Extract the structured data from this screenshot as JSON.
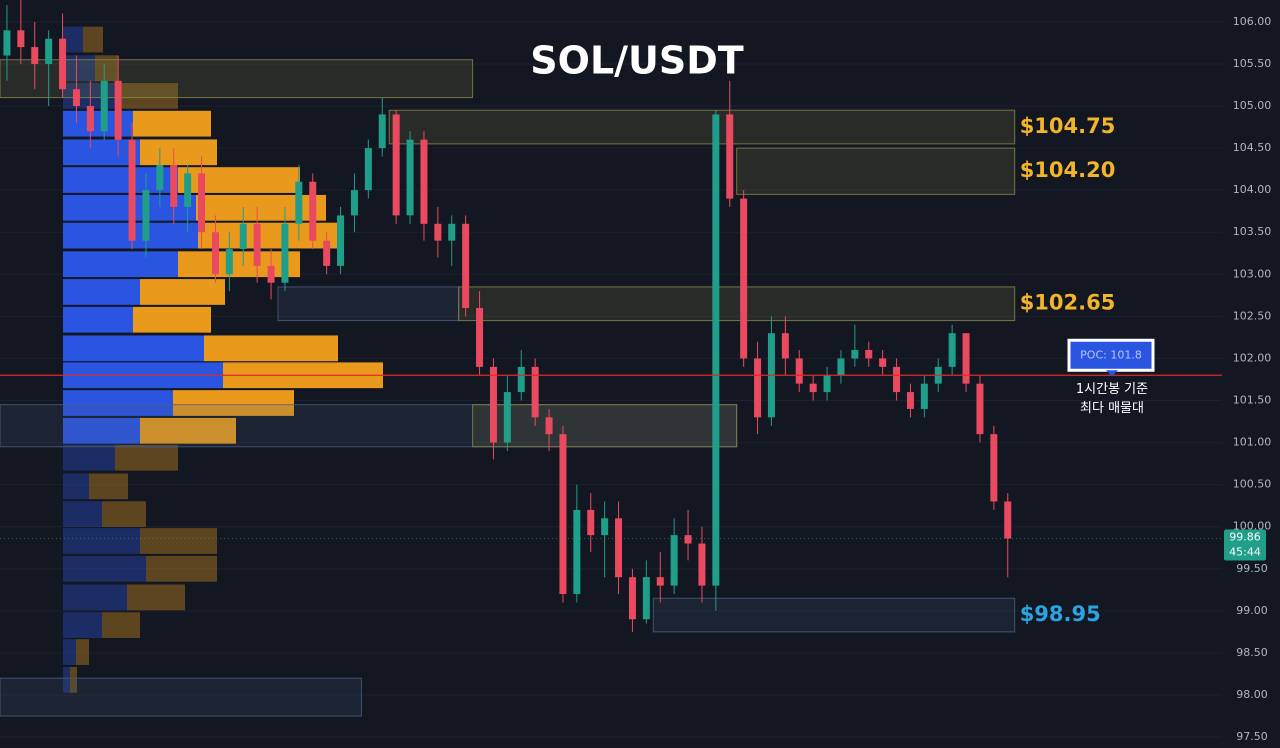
{
  "chart_data": {
    "type": "candlestick",
    "title": "SOL/USDT",
    "ylim": [
      97.37,
      106.26
    ],
    "yticks": [
      {
        "value": 97.5,
        "label": "97.50"
      },
      {
        "value": 98,
        "label": "98.00"
      },
      {
        "value": 98.5,
        "label": "98.50"
      },
      {
        "value": 99,
        "label": "99.00"
      },
      {
        "value": 99.5,
        "label": "99.50"
      },
      {
        "value": 100,
        "label": "100.00"
      },
      {
        "value": 100.5,
        "label": "100.50"
      },
      {
        "value": 101,
        "label": "101.00"
      },
      {
        "value": 101.5,
        "label": "101.50"
      },
      {
        "value": 102,
        "label": "102.00"
      },
      {
        "value": 102.5,
        "label": "102.50"
      },
      {
        "value": 103,
        "label": "103.00"
      },
      {
        "value": 103.5,
        "label": "103.50"
      },
      {
        "value": 104,
        "label": "104.00"
      },
      {
        "value": 104.5,
        "label": "104.50"
      },
      {
        "value": 105,
        "label": "105.00"
      },
      {
        "value": 105.5,
        "label": "105.50"
      },
      {
        "value": 106,
        "label": "106.00"
      }
    ],
    "grid": true,
    "up_color": "#1f9e89",
    "down_color": "#ea4a5f",
    "candles": [
      [
        105.6,
        106.2,
        105.3,
        105.9
      ],
      [
        105.9,
        106.3,
        105.5,
        105.7
      ],
      [
        105.7,
        106.0,
        105.2,
        105.5
      ],
      [
        105.5,
        105.9,
        105.0,
        105.8
      ],
      [
        105.8,
        106.1,
        105.1,
        105.2
      ],
      [
        105.2,
        105.6,
        104.8,
        105.0
      ],
      [
        105.0,
        105.3,
        104.5,
        104.7
      ],
      [
        104.7,
        105.5,
        104.6,
        105.3
      ],
      [
        105.3,
        105.6,
        104.4,
        104.6
      ],
      [
        104.6,
        104.8,
        103.3,
        103.4
      ],
      [
        103.4,
        104.2,
        103.2,
        104.0
      ],
      [
        104.0,
        104.5,
        103.8,
        104.3
      ],
      [
        104.3,
        104.5,
        103.6,
        103.8
      ],
      [
        103.8,
        104.3,
        103.5,
        104.2
      ],
      [
        104.2,
        104.4,
        103.3,
        103.5
      ],
      [
        103.5,
        103.7,
        102.9,
        103.0
      ],
      [
        103.0,
        103.5,
        102.8,
        103.3
      ],
      [
        103.3,
        103.8,
        103.1,
        103.6
      ],
      [
        103.6,
        103.8,
        102.9,
        103.1
      ],
      [
        103.1,
        103.3,
        102.7,
        102.9
      ],
      [
        102.9,
        103.8,
        102.8,
        103.6
      ],
      [
        103.6,
        104.3,
        103.4,
        104.1
      ],
      [
        104.1,
        104.2,
        103.3,
        103.4
      ],
      [
        103.4,
        103.5,
        103.0,
        103.1
      ],
      [
        103.1,
        103.8,
        103.0,
        103.7
      ],
      [
        103.7,
        104.2,
        103.5,
        104.0
      ],
      [
        104.0,
        104.6,
        103.9,
        104.5
      ],
      [
        104.5,
        105.1,
        104.4,
        104.9
      ],
      [
        104.9,
        104.95,
        103.6,
        103.7
      ],
      [
        103.7,
        104.7,
        103.6,
        104.6
      ],
      [
        104.6,
        104.7,
        103.4,
        103.6
      ],
      [
        103.6,
        103.8,
        103.2,
        103.4
      ],
      [
        103.4,
        103.7,
        103.1,
        103.6
      ],
      [
        103.6,
        103.7,
        102.5,
        102.6
      ],
      [
        102.6,
        102.8,
        101.8,
        101.9
      ],
      [
        101.9,
        102.0,
        100.8,
        101.0
      ],
      [
        101.0,
        101.8,
        100.9,
        101.6
      ],
      [
        101.6,
        102.1,
        101.5,
        101.9
      ],
      [
        101.9,
        102.0,
        101.2,
        101.3
      ],
      [
        101.3,
        101.4,
        100.9,
        101.1
      ],
      [
        101.1,
        101.2,
        99.1,
        99.2
      ],
      [
        99.2,
        100.5,
        99.1,
        100.2
      ],
      [
        100.2,
        100.4,
        99.7,
        99.9
      ],
      [
        99.9,
        100.3,
        99.4,
        100.1
      ],
      [
        100.1,
        100.3,
        99.2,
        99.4
      ],
      [
        99.4,
        99.5,
        98.75,
        98.9
      ],
      [
        98.9,
        99.6,
        98.85,
        99.4
      ],
      [
        99.4,
        99.7,
        99.1,
        99.3
      ],
      [
        99.3,
        100.1,
        99.2,
        99.9
      ],
      [
        99.9,
        100.2,
        99.6,
        99.8
      ],
      [
        99.8,
        100.0,
        99.1,
        99.3
      ],
      [
        99.3,
        104.95,
        99.0,
        104.9
      ],
      [
        104.9,
        105.3,
        103.8,
        103.9
      ],
      [
        103.9,
        104.0,
        101.9,
        102.0
      ],
      [
        102.0,
        102.2,
        101.1,
        101.3
      ],
      [
        101.3,
        102.5,
        101.2,
        102.3
      ],
      [
        102.3,
        102.5,
        101.8,
        102.0
      ],
      [
        102.0,
        102.1,
        101.6,
        101.7
      ],
      [
        101.7,
        101.8,
        101.5,
        101.6
      ],
      [
        101.6,
        101.9,
        101.5,
        101.8
      ],
      [
        101.8,
        102.1,
        101.7,
        102.0
      ],
      [
        102.0,
        102.4,
        101.9,
        102.1
      ],
      [
        102.1,
        102.2,
        101.9,
        102.0
      ],
      [
        102.0,
        102.1,
        101.8,
        101.9
      ],
      [
        101.9,
        102.0,
        101.5,
        101.6
      ],
      [
        101.6,
        101.7,
        101.3,
        101.4
      ],
      [
        101.4,
        101.8,
        101.3,
        101.7
      ],
      [
        101.7,
        102.0,
        101.6,
        101.9
      ],
      [
        101.9,
        102.4,
        101.8,
        102.3
      ],
      [
        102.3,
        102.3,
        101.6,
        101.7
      ],
      [
        101.7,
        101.8,
        101.0,
        101.1
      ],
      [
        101.1,
        101.2,
        100.2,
        100.3
      ],
      [
        100.3,
        100.4,
        99.4,
        99.86
      ]
    ],
    "profile": {
      "buy_color": "#2a55e0",
      "sell_color": "#e99a1d",
      "xlim": [
        0,
        400
      ],
      "prices": [
        105.79,
        105.45,
        105.12,
        104.79,
        104.45,
        104.12,
        103.79,
        103.46,
        103.12,
        102.79,
        102.46,
        102.12,
        101.8,
        101.47,
        101.14,
        100.82,
        100.48,
        100.15,
        99.83,
        99.5,
        99.16,
        98.83,
        98.51,
        98.18
      ],
      "buy": [
        20,
        32,
        57,
        70,
        77,
        115,
        133,
        135,
        115,
        77,
        70,
        141,
        160,
        110,
        77,
        52,
        26,
        39,
        77,
        83,
        64,
        39,
        13,
        7
      ],
      "sell": [
        20,
        23,
        58,
        78,
        77,
        122,
        130,
        139,
        122,
        85,
        78,
        134,
        160,
        121,
        96,
        63,
        39,
        44,
        77,
        71,
        58,
        38,
        13,
        7
      ],
      "highlight": [
        false,
        false,
        false,
        true,
        true,
        true,
        true,
        true,
        true,
        true,
        true,
        true,
        true,
        true,
        true,
        false,
        false,
        false,
        false,
        false,
        false,
        false,
        false,
        false
      ]
    },
    "zones": [
      {
        "top": 105.55,
        "bottom": 105.1,
        "from": 0,
        "to": 34,
        "color": "#8a8a4a"
      },
      {
        "top": 104.95,
        "bottom": 104.55,
        "from": 28,
        "to": 73,
        "color": "#8a8a4a",
        "label": "$104.75",
        "label_color": "#f2b52a"
      },
      {
        "top": 104.5,
        "bottom": 103.95,
        "from": 53,
        "to": 73,
        "color": "#8a8a4a",
        "label": "$104.20",
        "label_color": "#f2b52a"
      },
      {
        "top": 102.85,
        "bottom": 102.45,
        "from": 20,
        "to": 33,
        "color": "#4a6080"
      },
      {
        "top": 102.85,
        "bottom": 102.45,
        "from": 33,
        "to": 73,
        "color": "#8a8a4a",
        "label": "$102.65",
        "label_color": "#f2b52a"
      },
      {
        "top": 101.45,
        "bottom": 100.95,
        "from": 0,
        "to": 53,
        "color": "#4a6080"
      },
      {
        "top": 101.45,
        "bottom": 100.95,
        "from": 34,
        "to": 53,
        "color": "#8a8a4a"
      },
      {
        "top": 99.15,
        "bottom": 98.75,
        "from": 47,
        "to": 73,
        "color": "#4a6080",
        "label": "$98.95",
        "label_color": "#2aa4e2"
      },
      {
        "top": 98.2,
        "bottom": 97.75,
        "from": 0,
        "to": 26,
        "color": "#4a6080"
      }
    ],
    "poc": {
      "value": 101.8,
      "label": "POC: 101.8",
      "color": "#e0282a",
      "note": [
        "1시간봉 기준",
        "최다 매물대"
      ]
    },
    "last_price": 99.86,
    "countdown": "45:44"
  }
}
